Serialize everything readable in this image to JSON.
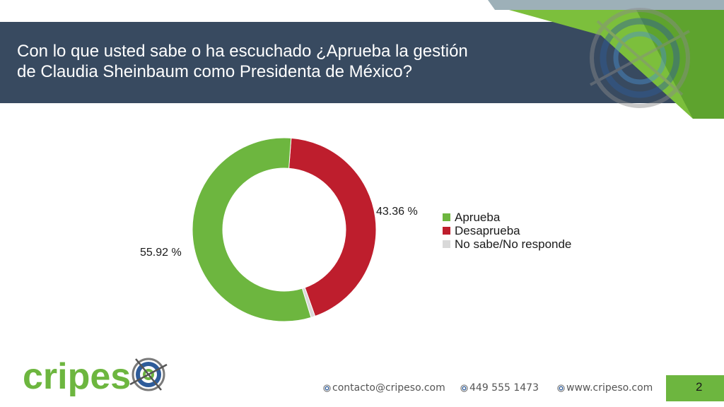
{
  "header": {
    "title_line1": "Con lo que usted sabe o ha escuchado ¿Aprueba la gestión",
    "title_line2": "de Claudia Sheinbaum como Presidenta de México?"
  },
  "chart_data": {
    "type": "pie",
    "donut": true,
    "categories": [
      "Aprueba",
      "Desaprueba",
      "No sabe/No responde"
    ],
    "values": [
      55.92,
      43.36,
      0.72
    ],
    "data_labels": [
      "55.92 %",
      "43.36 %",
      ""
    ],
    "colors": [
      "#6db63f",
      "#be1e2d",
      "#d9d9d9"
    ],
    "legend_position": "right"
  },
  "footer": {
    "logo_text_left": "cripes",
    "logo_text_right": "o",
    "email": "contacto@cripeso.com",
    "phone": "449 555 1473",
    "website": "www.cripeso.com",
    "page_number": "2"
  },
  "colors": {
    "title_band": "#384a60",
    "accent_green": "#6db63f",
    "logo_blue": "#2e5c9a"
  }
}
